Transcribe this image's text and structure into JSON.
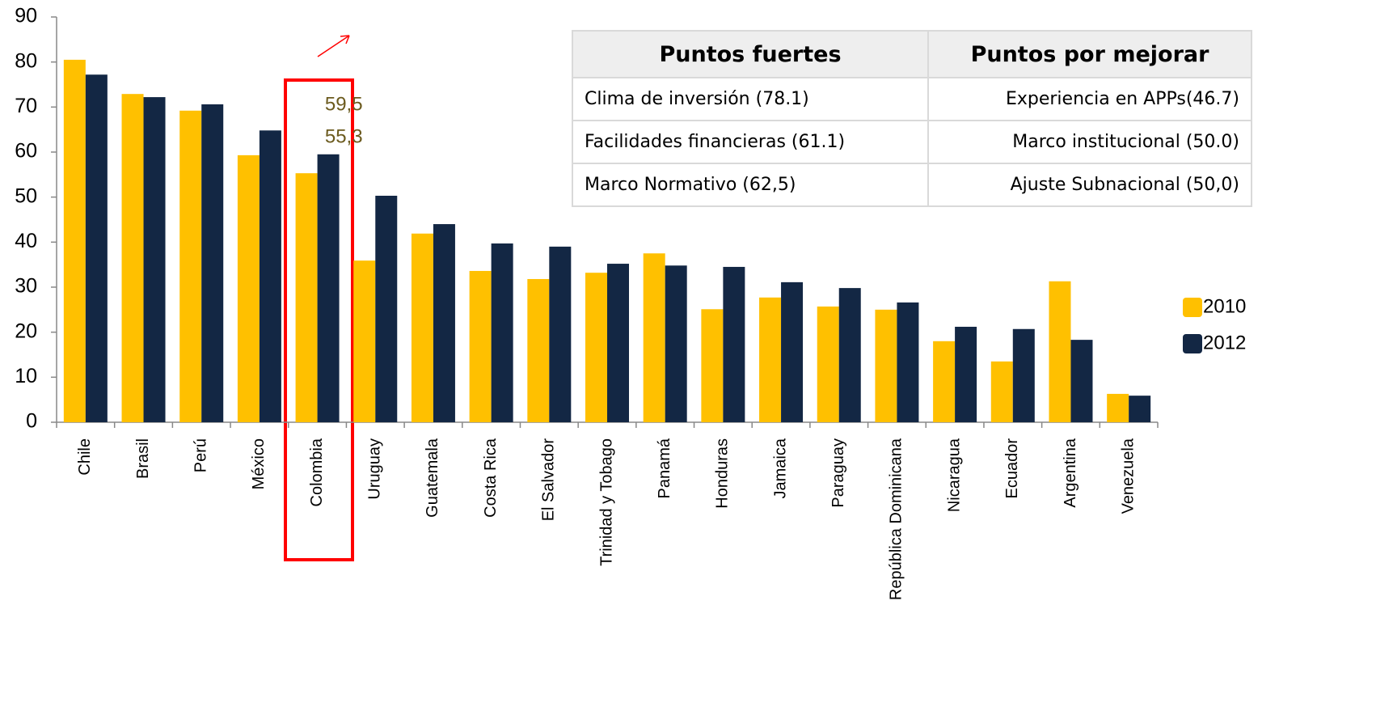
{
  "chart_data": {
    "type": "bar",
    "categories": [
      "Chile",
      "Brasil",
      "Perú",
      "México",
      "Colombia",
      "Uruguay",
      "Guatemala",
      "Costa Rica",
      "El Salvador",
      "Trinidad y Tobago",
      "Panamá",
      "Honduras",
      "Jamaica",
      "Paraguay",
      "República Dominicana",
      "Nicaragua",
      "Ecuador",
      "Argentina",
      "Venezuela"
    ],
    "series": [
      {
        "name": "2010",
        "color": "#ffc000",
        "values": [
          80.5,
          72.9,
          69.2,
          59.3,
          55.3,
          35.9,
          41.9,
          33.6,
          31.8,
          33.2,
          37.5,
          25.1,
          27.7,
          25.7,
          25.0,
          18.0,
          13.5,
          31.3,
          6.3
        ],
        "value_labels": [
          null,
          null,
          null,
          null,
          "55,3",
          null,
          null,
          null,
          null,
          null,
          null,
          null,
          null,
          null,
          null,
          null,
          null,
          null,
          null
        ]
      },
      {
        "name": "2012",
        "color": "#132744",
        "values": [
          77.2,
          72.2,
          70.6,
          64.8,
          59.5,
          50.3,
          44.0,
          39.7,
          39.0,
          35.2,
          34.8,
          34.5,
          31.1,
          29.8,
          26.6,
          21.2,
          20.7,
          18.3,
          5.9
        ],
        "value_labels": [
          null,
          null,
          null,
          null,
          "59,5",
          null,
          null,
          null,
          null,
          null,
          null,
          null,
          null,
          null,
          null,
          null,
          null,
          null,
          null
        ]
      }
    ],
    "ylim": [
      0,
      90
    ],
    "yticks": [
      0,
      10,
      20,
      30,
      40,
      50,
      60,
      70,
      80,
      90
    ],
    "legend": "right"
  },
  "table": {
    "header": [
      "Puntos fuertes",
      "Puntos por mejorar"
    ],
    "rows": [
      [
        "Clima de inversión (78.1)",
        "Experiencia en APPs(46.7)"
      ],
      [
        "Facilidades financieras  (61.1)",
        "Marco institucional (50.0)"
      ],
      [
        "Marco Normativo (62,5)",
        "Ajuste Subnacional (50,0)"
      ]
    ]
  }
}
